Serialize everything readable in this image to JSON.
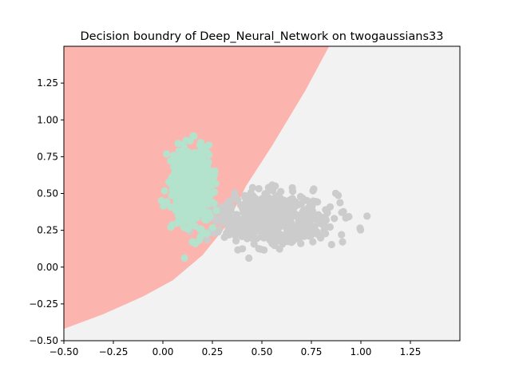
{
  "chart_data": {
    "type": "scatter",
    "title": "Decision boundry of Deep_Neural_Network on twogaussians33",
    "xlabel": "",
    "ylabel": "",
    "xlim": [
      -0.5,
      1.5
    ],
    "ylim": [
      -0.5,
      1.5
    ],
    "xticks": [
      -0.5,
      -0.25,
      0.0,
      0.25,
      0.5,
      0.75,
      1.0,
      1.25
    ],
    "yticks": [
      -0.5,
      -0.25,
      0.0,
      0.25,
      0.5,
      0.75,
      1.0,
      1.25
    ],
    "xtick_labels": [
      "−0.50",
      "−0.25",
      "0.00",
      "0.25",
      "0.50",
      "0.75",
      "1.00",
      "1.25"
    ],
    "ytick_labels": [
      "−0.50",
      "−0.25",
      "0.00",
      "0.25",
      "0.50",
      "0.75",
      "1.00",
      "1.25"
    ],
    "grid": false,
    "decision_boundary": {
      "points": [
        [
          -0.5,
          -0.42
        ],
        [
          -0.3,
          -0.32
        ],
        [
          -0.1,
          -0.2
        ],
        [
          0.05,
          -0.09
        ],
        [
          0.2,
          0.08
        ],
        [
          0.32,
          0.28
        ],
        [
          0.42,
          0.55
        ],
        [
          0.55,
          0.82
        ],
        [
          0.72,
          1.2
        ],
        [
          0.84,
          1.5
        ]
      ],
      "regions": [
        {
          "label": "upper-left",
          "color": "#fcb5ae"
        },
        {
          "label": "lower-right",
          "color": "#f2f2f2"
        }
      ]
    },
    "series": [
      {
        "color": "#b3e2cd",
        "center": [
          0.15,
          0.55
        ],
        "spread": [
          0.05,
          0.13
        ],
        "count": 500
      },
      {
        "color": "#cccccc",
        "center": [
          0.55,
          0.33
        ],
        "spread": [
          0.15,
          0.09
        ],
        "count": 500
      }
    ]
  }
}
